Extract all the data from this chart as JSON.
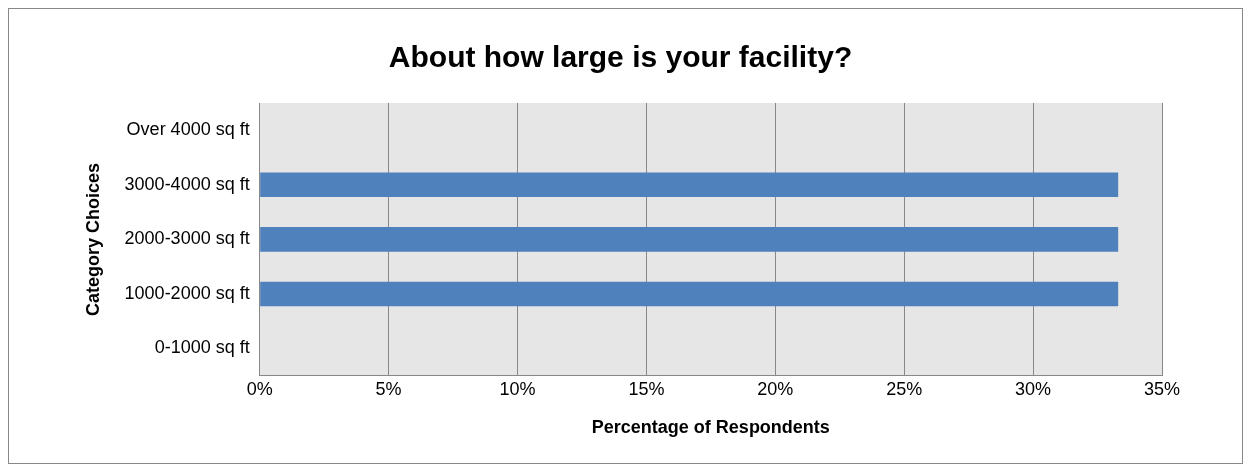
{
  "chart_data": {
    "type": "bar",
    "orientation": "horizontal",
    "title": "About how large is your facility?",
    "xlabel": "Percentage of Respondents",
    "ylabel": "Category Choices",
    "categories": [
      "Over 4000 sq ft",
      "3000-4000 sq ft",
      "2000-3000 sq ft",
      "1000-2000 sq ft",
      "0-1000 sq ft"
    ],
    "values": [
      0,
      33.3,
      33.3,
      33.3,
      0
    ],
    "color": "#4f81bd",
    "xlim": [
      0,
      35
    ],
    "xticks": [
      {
        "value": 0,
        "label": "0%"
      },
      {
        "value": 5,
        "label": "5%"
      },
      {
        "value": 10,
        "label": "10%"
      },
      {
        "value": 15,
        "label": "15%"
      },
      {
        "value": 20,
        "label": "20%"
      },
      {
        "value": 25,
        "label": "25%"
      },
      {
        "value": 30,
        "label": "30%"
      },
      {
        "value": 35,
        "label": "35%"
      }
    ],
    "grid": "x",
    "legend": false
  }
}
